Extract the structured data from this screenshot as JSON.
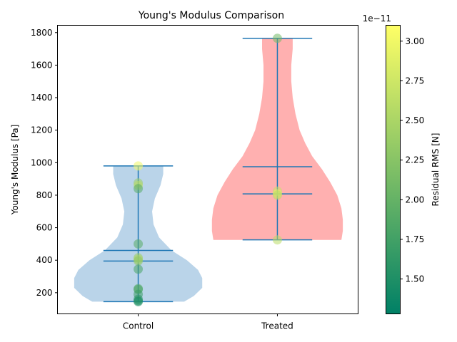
{
  "chart_data": {
    "type": "violin",
    "title": "Young's Modulus Comparison",
    "xlabel": "",
    "ylabel": "Young's Modulus [Pa]",
    "categories": [
      "Control",
      "Treated"
    ],
    "ylim": [
      70,
      1845
    ],
    "yticks": [
      200,
      400,
      600,
      800,
      1000,
      1200,
      1400,
      1600,
      1800
    ],
    "grid": false,
    "violins": [
      {
        "category": "Control",
        "color": "#1f77b4",
        "fill_color": "#bad4e9",
        "min": 145,
        "max": 980,
        "mean": 460,
        "median": 395,
        "profile": [
          {
            "y": 145,
            "w": 0.33
          },
          {
            "y": 180,
            "w": 0.4
          },
          {
            "y": 230,
            "w": 0.46
          },
          {
            "y": 290,
            "w": 0.46
          },
          {
            "y": 340,
            "w": 0.43
          },
          {
            "y": 400,
            "w": 0.35
          },
          {
            "y": 460,
            "w": 0.24
          },
          {
            "y": 540,
            "w": 0.15
          },
          {
            "y": 620,
            "w": 0.11
          },
          {
            "y": 700,
            "w": 0.1
          },
          {
            "y": 780,
            "w": 0.12
          },
          {
            "y": 860,
            "w": 0.16
          },
          {
            "y": 930,
            "w": 0.18
          },
          {
            "y": 980,
            "w": 0.18
          }
        ],
        "points": [
          {
            "y": 980,
            "rms": 3.0
          },
          {
            "y": 875,
            "rms": 2.4
          },
          {
            "y": 860,
            "rms": 2.6
          },
          {
            "y": 840,
            "rms": 1.9
          },
          {
            "y": 500,
            "rms": 1.9
          },
          {
            "y": 415,
            "rms": 2.4
          },
          {
            "y": 405,
            "rms": 2.5
          },
          {
            "y": 395,
            "rms": 2.3
          },
          {
            "y": 345,
            "rms": 1.8
          },
          {
            "y": 225,
            "rms": 1.9
          },
          {
            "y": 220,
            "rms": 1.8
          },
          {
            "y": 190,
            "rms": 1.7
          },
          {
            "y": 160,
            "rms": 1.6
          },
          {
            "y": 150,
            "rms": 1.55
          },
          {
            "y": 145,
            "rms": 1.5
          }
        ]
      },
      {
        "category": "Treated",
        "color": "#1f77b4",
        "fill_color": "#ffb0b0",
        "min": 525,
        "max": 1765,
        "mean": 975,
        "median": 808,
        "profile": [
          {
            "y": 525,
            "w": 0.46
          },
          {
            "y": 580,
            "w": 0.47
          },
          {
            "y": 650,
            "w": 0.47
          },
          {
            "y": 720,
            "w": 0.46
          },
          {
            "y": 800,
            "w": 0.43
          },
          {
            "y": 880,
            "w": 0.38
          },
          {
            "y": 960,
            "w": 0.32
          },
          {
            "y": 1040,
            "w": 0.25
          },
          {
            "y": 1120,
            "w": 0.2
          },
          {
            "y": 1200,
            "w": 0.16
          },
          {
            "y": 1300,
            "w": 0.13
          },
          {
            "y": 1400,
            "w": 0.11
          },
          {
            "y": 1500,
            "w": 0.1
          },
          {
            "y": 1600,
            "w": 0.1
          },
          {
            "y": 1700,
            "w": 0.11
          },
          {
            "y": 1765,
            "w": 0.11
          }
        ],
        "points": [
          {
            "y": 1765,
            "rms": 2.1
          },
          {
            "y": 825,
            "rms": 2.7
          },
          {
            "y": 808,
            "rms": 2.9
          },
          {
            "y": 800,
            "rms": 2.6
          },
          {
            "y": 525,
            "rms": 2.6
          }
        ]
      }
    ],
    "colorbar": {
      "label": "Residual RMS [N]",
      "offset_text": "1e−11",
      "colormap": "summer",
      "range": [
        1.28,
        3.1
      ],
      "ticks": [
        1.5,
        1.75,
        2.0,
        2.25,
        2.5,
        2.75,
        3.0
      ],
      "tick_labels": [
        "1.50",
        "1.75",
        "2.00",
        "2.25",
        "2.50",
        "2.75",
        "3.00"
      ]
    }
  }
}
